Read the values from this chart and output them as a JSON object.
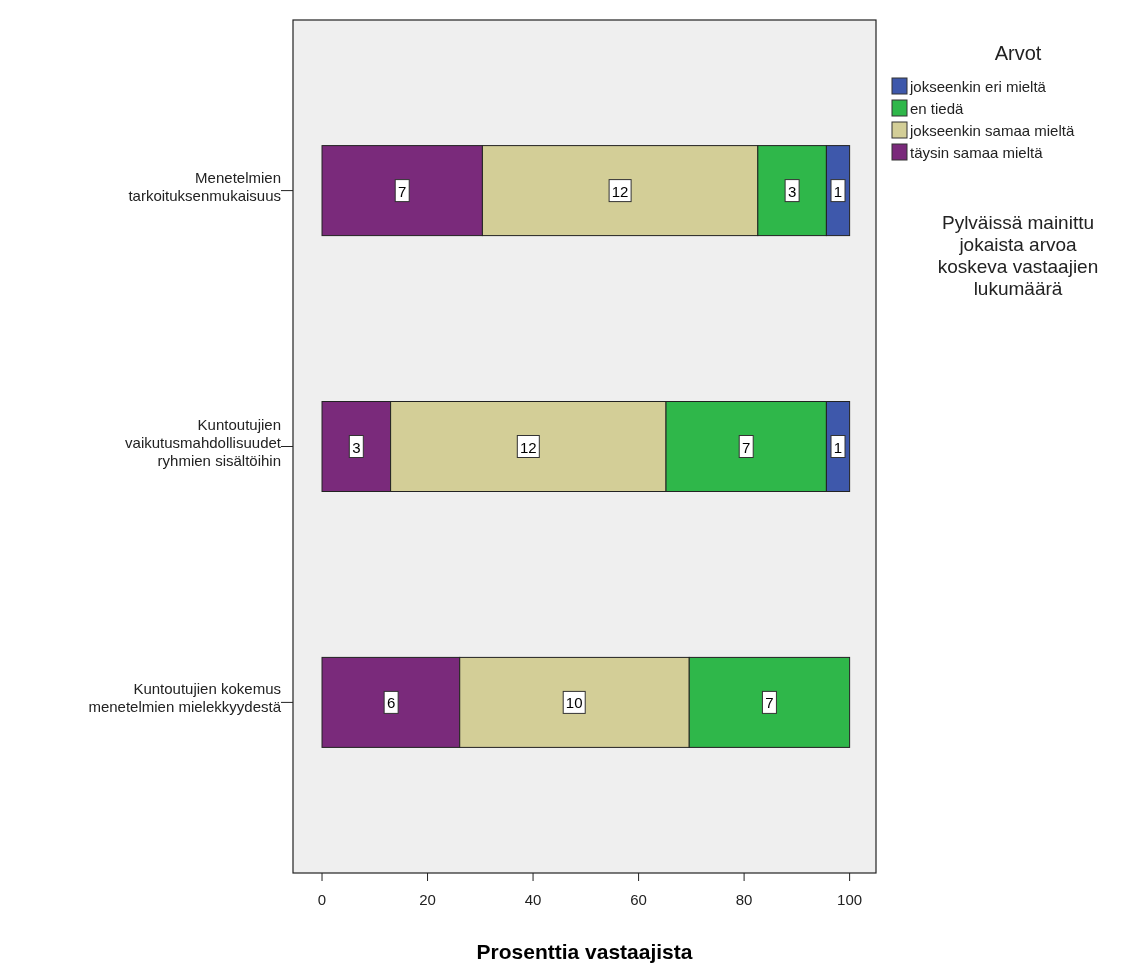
{
  "chart_data": {
    "type": "bar",
    "orientation": "horizontal",
    "stacked": true,
    "categories": [
      "Menetelmien\ntarkoituksenmukaisuus",
      "Kuntoutujien\nvaikutusmahdollisuudet\nryhmien sisältöihin",
      "Kuntoutujien kokemus\nmenetelmien mielekkyydestä"
    ],
    "series": [
      {
        "name": "täysin samaa mieltä",
        "color": "#7a2a7b",
        "values": [
          30.4,
          13.0,
          26.1
        ]
      },
      {
        "name": "jokseenkin samaa mieltä",
        "color": "#d3ce97",
        "values": [
          52.2,
          52.2,
          43.5
        ]
      },
      {
        "name": "en tiedä",
        "color": "#2fb74a",
        "values": [
          13.0,
          30.4,
          30.4
        ]
      },
      {
        "name": "jokseenkin eri mieltä",
        "color": "#3e58ab",
        "values": [
          4.4,
          4.4,
          null
        ]
      }
    ],
    "xlim": [
      -5.5,
      105
    ],
    "xticks": [
      0,
      20,
      40,
      60,
      80,
      100
    ],
    "xlabel": "Prosenttia vastaajista",
    "legend_title": "Arvot",
    "legend": "right",
    "annotations": [
      "Pylväissä mainittu\njokaista arvoa\nkoskeva vastaajien\nlukumäärä",
      {
        "text": "7",
        "x": 15.2,
        "y": "Menetelmien\ntarkoituksenmukaisuus"
      },
      {
        "text": "12",
        "x": 56.5,
        "y": "Menetelmien\ntarkoituksenmukaisuus"
      },
      {
        "text": "3",
        "x": 89.1,
        "y": "Menetelmien\ntarkoituksenmukaisuus"
      },
      {
        "text": "1",
        "x": 97.8,
        "y": "Menetelmien\ntarkoituksenmukaisuus"
      },
      {
        "text": "3",
        "x": 6.5,
        "y": "Kuntoutujien\nvaikutusmahdollisuudet\nryhmien sisältöihin"
      },
      {
        "text": "12",
        "x": 39.1,
        "y": "Kuntoutujien\nvaikutusmahdollisuudet\nryhmien sisältöihin"
      },
      {
        "text": "7",
        "x": 80.4,
        "y": "Kuntoutujien\nvaikutusmahdollisuudet\nryhmien sisältöihin"
      },
      {
        "text": "1",
        "x": 97.8,
        "y": "Kuntoutujien\nvaikutusmahdollisuudet\nryhmien sisältöihin"
      },
      {
        "text": "6",
        "x": 13.1,
        "y": "Kuntoutujien kokemus\nmenetelmien mielekkyydestä"
      },
      {
        "text": "10",
        "x": 47.8,
        "y": "Kuntoutujien kokemus\nmenetelmien mielekkyydestä"
      },
      {
        "text": "7",
        "x": 84.8,
        "y": "Kuntoutujien kokemus\nmenetelmien mielekkyydestä"
      }
    ]
  }
}
